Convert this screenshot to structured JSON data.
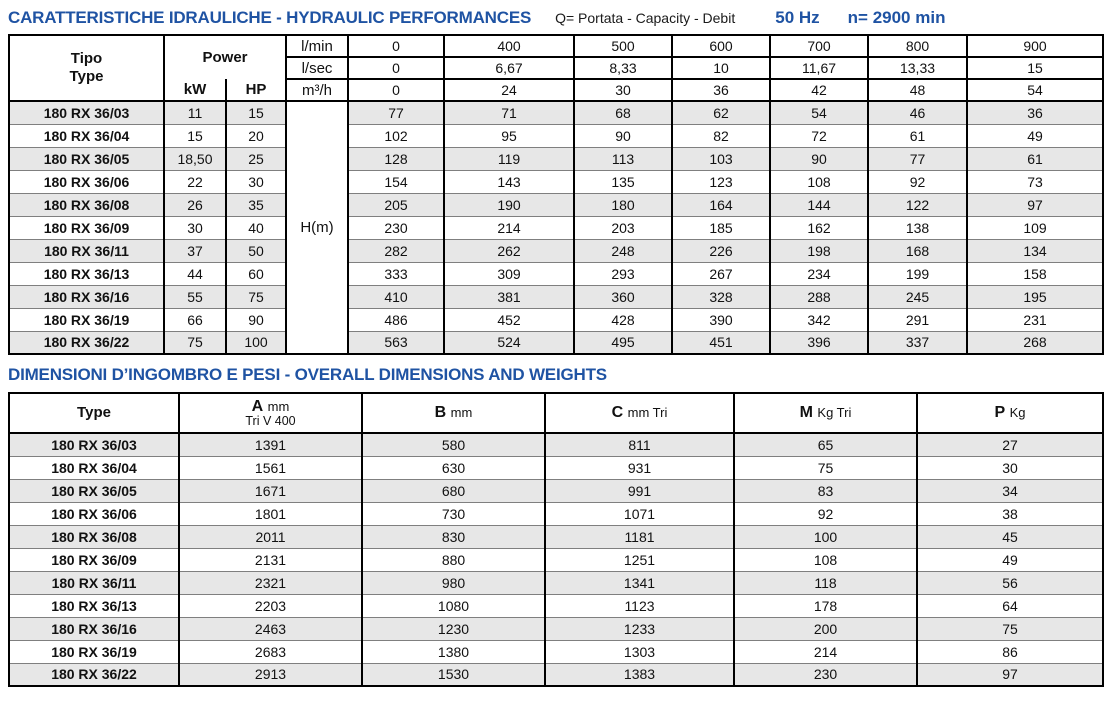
{
  "colors": {
    "accent": "#1f53a3",
    "row_shade": "#e7e7e7"
  },
  "hydraulics": {
    "title": "CARATTERISTICHE IDRAULICHE - HYDRAULIC PERFORMANCES",
    "subtitle": "Q= Portata - Capacity - Debit",
    "frequency": "50 Hz",
    "speed": "n= 2900 min",
    "h_label": "H(m)",
    "header": {
      "tipo": "Tipo",
      "type": "Type",
      "power": "Power",
      "kw": "kW",
      "hp": "HP",
      "flow_rows": [
        {
          "unit": "l/min",
          "values": [
            "0",
            "400",
            "500",
            "600",
            "700",
            "800",
            "900"
          ]
        },
        {
          "unit": "l/sec",
          "values": [
            "0",
            "6,67",
            "8,33",
            "10",
            "11,67",
            "13,33",
            "15"
          ]
        },
        {
          "unit": "m³/h",
          "values": [
            "0",
            "24",
            "30",
            "36",
            "42",
            "48",
            "54"
          ]
        }
      ]
    },
    "rows": [
      {
        "type": "180 RX 36/03",
        "kw": "11",
        "hp": "15",
        "h": [
          "77",
          "71",
          "68",
          "62",
          "54",
          "46",
          "36"
        ]
      },
      {
        "type": "180 RX 36/04",
        "kw": "15",
        "hp": "20",
        "h": [
          "102",
          "95",
          "90",
          "82",
          "72",
          "61",
          "49"
        ]
      },
      {
        "type": "180 RX 36/05",
        "kw": "18,50",
        "hp": "25",
        "h": [
          "128",
          "119",
          "113",
          "103",
          "90",
          "77",
          "61"
        ]
      },
      {
        "type": "180 RX 36/06",
        "kw": "22",
        "hp": "30",
        "h": [
          "154",
          "143",
          "135",
          "123",
          "108",
          "92",
          "73"
        ]
      },
      {
        "type": "180 RX 36/08",
        "kw": "26",
        "hp": "35",
        "h": [
          "205",
          "190",
          "180",
          "164",
          "144",
          "122",
          "97"
        ]
      },
      {
        "type": "180 RX 36/09",
        "kw": "30",
        "hp": "40",
        "h": [
          "230",
          "214",
          "203",
          "185",
          "162",
          "138",
          "109"
        ]
      },
      {
        "type": "180 RX 36/11",
        "kw": "37",
        "hp": "50",
        "h": [
          "282",
          "262",
          "248",
          "226",
          "198",
          "168",
          "134"
        ]
      },
      {
        "type": "180 RX 36/13",
        "kw": "44",
        "hp": "60",
        "h": [
          "333",
          "309",
          "293",
          "267",
          "234",
          "199",
          "158"
        ]
      },
      {
        "type": "180 RX 36/16",
        "kw": "55",
        "hp": "75",
        "h": [
          "410",
          "381",
          "360",
          "328",
          "288",
          "245",
          "195"
        ]
      },
      {
        "type": "180 RX 36/19",
        "kw": "66",
        "hp": "90",
        "h": [
          "486",
          "452",
          "428",
          "390",
          "342",
          "291",
          "231"
        ]
      },
      {
        "type": "180 RX 36/22",
        "kw": "75",
        "hp": "100",
        "h": [
          "563",
          "524",
          "495",
          "451",
          "396",
          "337",
          "268"
        ]
      }
    ]
  },
  "dimensions": {
    "title": "DIMENSIONI D’INGOMBRO E PESI - OVERALL DIMENSIONS AND WEIGHTS",
    "columns": [
      {
        "label": "Type",
        "unit": "",
        "sub": ""
      },
      {
        "label": "A",
        "unit": "mm",
        "sub": "Tri V 400"
      },
      {
        "label": "B",
        "unit": "mm",
        "sub": ""
      },
      {
        "label": "C",
        "unit": "mm Tri",
        "sub": ""
      },
      {
        "label": "M",
        "unit": "Kg Tri",
        "sub": ""
      },
      {
        "label": "P",
        "unit": "Kg",
        "sub": ""
      }
    ],
    "rows": [
      {
        "type": "180 RX 36/03",
        "a": "1391",
        "b": "580",
        "c": "811",
        "m": "65",
        "p": "27"
      },
      {
        "type": "180 RX 36/04",
        "a": "1561",
        "b": "630",
        "c": "931",
        "m": "75",
        "p": "30"
      },
      {
        "type": "180 RX 36/05",
        "a": "1671",
        "b": "680",
        "c": "991",
        "m": "83",
        "p": "34"
      },
      {
        "type": "180 RX 36/06",
        "a": "1801",
        "b": "730",
        "c": "1071",
        "m": "92",
        "p": "38"
      },
      {
        "type": "180 RX 36/08",
        "a": "2011",
        "b": "830",
        "c": "1181",
        "m": "100",
        "p": "45"
      },
      {
        "type": "180 RX 36/09",
        "a": "2131",
        "b": "880",
        "c": "1251",
        "m": "108",
        "p": "49"
      },
      {
        "type": "180 RX 36/11",
        "a": "2321",
        "b": "980",
        "c": "1341",
        "m": "118",
        "p": "56"
      },
      {
        "type": "180 RX 36/13",
        "a": "2203",
        "b": "1080",
        "c": "1123",
        "m": "178",
        "p": "64"
      },
      {
        "type": "180 RX 36/16",
        "a": "2463",
        "b": "1230",
        "c": "1233",
        "m": "200",
        "p": "75"
      },
      {
        "type": "180 RX 36/19",
        "a": "2683",
        "b": "1380",
        "c": "1303",
        "m": "214",
        "p": "86"
      },
      {
        "type": "180 RX 36/22",
        "a": "2913",
        "b": "1530",
        "c": "1383",
        "m": "230",
        "p": "97"
      }
    ]
  }
}
